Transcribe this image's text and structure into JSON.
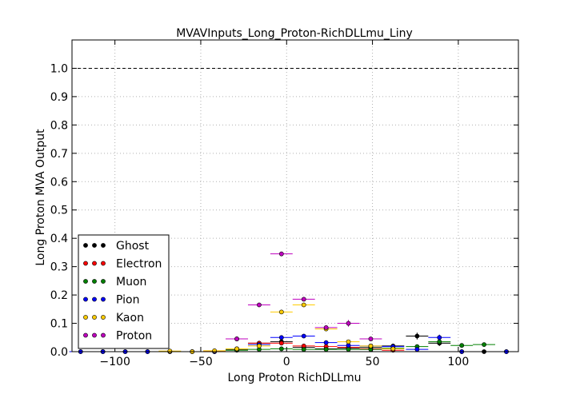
{
  "chart_data": {
    "type": "scatter",
    "title": "MVAVInputs_Long_Proton-RichDLLmu_Liny",
    "xlabel": "Long Proton RichDLLmu",
    "ylabel": "Long Proton MVA Output",
    "xlim": [
      -125,
      135
    ],
    "ylim": [
      0,
      1.1
    ],
    "x_ticks": [
      -100,
      -50,
      0,
      50,
      100
    ],
    "x_tick_labels": [
      "−100",
      "−50",
      "0",
      "50",
      "100"
    ],
    "y_ticks": [
      0.0,
      0.1,
      0.2,
      0.3,
      0.4,
      0.5,
      0.6,
      0.7,
      0.8,
      0.9,
      1.0
    ],
    "y_tick_labels": [
      "0.0",
      "0.1",
      "0.2",
      "0.3",
      "0.4",
      "0.5",
      "0.6",
      "0.7",
      "0.8",
      "0.9",
      "1.0"
    ],
    "grid": true,
    "reference_line": 1.0,
    "legend_position": "lower-left",
    "series": [
      {
        "name": "Ghost",
        "color": "#000000",
        "points": [
          [
            -120,
            0
          ],
          [
            -107,
            0
          ],
          [
            -94,
            0
          ],
          [
            -81,
            0
          ],
          [
            -68,
            0
          ],
          [
            -55,
            0
          ],
          [
            -42,
            0
          ],
          [
            -29,
            0.008
          ],
          [
            -16,
            0.03
          ],
          [
            -3,
            0.035
          ],
          [
            10,
            0.015
          ],
          [
            23,
            0.01
          ],
          [
            36,
            0.012
          ],
          [
            49,
            0.015
          ],
          [
            62,
            0.02
          ],
          [
            76,
            0.055
          ],
          [
            89,
            0.03
          ],
          [
            102,
            0
          ],
          [
            115,
            0
          ],
          [
            128,
            0
          ]
        ],
        "xerr": 6.5,
        "yerr": [
          0,
          0,
          0,
          0,
          0,
          0,
          0,
          0.003,
          0.005,
          0.006,
          0.004,
          0.003,
          0.004,
          0.005,
          0.006,
          0.012,
          0.01,
          0,
          0,
          0
        ]
      },
      {
        "name": "Electron",
        "color": "#ff0000",
        "points": [
          [
            -42,
            0.002
          ],
          [
            -29,
            0.045
          ],
          [
            -16,
            0.03
          ],
          [
            -3,
            0.03
          ],
          [
            10,
            0.02
          ],
          [
            23,
            0.018
          ],
          [
            36,
            0.015
          ],
          [
            49,
            0.01
          ],
          [
            62,
            0.005
          ]
        ],
        "xerr": 6.5,
        "yerr": [
          0.001,
          0.005,
          0.004,
          0.004,
          0.003,
          0.003,
          0.003,
          0.002,
          0.002
        ]
      },
      {
        "name": "Muon",
        "color": "#008000",
        "points": [
          [
            -29,
            0.005
          ],
          [
            -16,
            0.008
          ],
          [
            -3,
            0.01
          ],
          [
            10,
            0.008
          ],
          [
            23,
            0.008
          ],
          [
            36,
            0.008
          ],
          [
            49,
            0.008
          ],
          [
            62,
            0.012
          ],
          [
            76,
            0.018
          ],
          [
            89,
            0.035
          ],
          [
            102,
            0.022
          ],
          [
            115,
            0.025
          ]
        ],
        "xerr": 6.5,
        "yerr": [
          0.002,
          0.002,
          0.003,
          0.002,
          0.002,
          0.002,
          0.002,
          0.003,
          0.004,
          0.006,
          0.004,
          0.005
        ]
      },
      {
        "name": "Pion",
        "color": "#0000ff",
        "points": [
          [
            -120,
            0
          ],
          [
            -107,
            0
          ],
          [
            -94,
            0
          ],
          [
            -81,
            0
          ],
          [
            -68,
            0
          ],
          [
            -55,
            0
          ],
          [
            -42,
            0
          ],
          [
            -29,
            0.01
          ],
          [
            -16,
            0.025
          ],
          [
            -3,
            0.05
          ],
          [
            10,
            0.055
          ],
          [
            23,
            0.032
          ],
          [
            36,
            0.022
          ],
          [
            49,
            0.02
          ],
          [
            62,
            0.018
          ],
          [
            76,
            0.008
          ],
          [
            89,
            0.05
          ],
          [
            102,
            0
          ],
          [
            128,
            0
          ]
        ],
        "xerr": 6.5,
        "yerr": [
          0,
          0,
          0,
          0,
          0,
          0,
          0,
          0.002,
          0.003,
          0.004,
          0.004,
          0.003,
          0.003,
          0.003,
          0.003,
          0.002,
          0.01,
          0,
          0
        ]
      },
      {
        "name": "Kaon",
        "color": "#ffcc00",
        "points": [
          [
            -68,
            0.002
          ],
          [
            -55,
            0
          ],
          [
            -42,
            0.003
          ],
          [
            -29,
            0.01
          ],
          [
            -16,
            0.02
          ],
          [
            -3,
            0.14
          ],
          [
            10,
            0.165
          ],
          [
            23,
            0.08
          ],
          [
            36,
            0.035
          ],
          [
            49,
            0.02
          ],
          [
            62,
            0.01
          ]
        ],
        "xerr": 6.5,
        "yerr": [
          0.001,
          0,
          0.001,
          0.002,
          0.003,
          0.006,
          0.007,
          0.005,
          0.004,
          0.003,
          0.002
        ]
      },
      {
        "name": "Proton",
        "color": "#bf00bf",
        "points": [
          [
            -29,
            0.045
          ],
          [
            -16,
            0.165
          ],
          [
            -3,
            0.345
          ],
          [
            10,
            0.185
          ],
          [
            23,
            0.085
          ],
          [
            36,
            0.1
          ],
          [
            49,
            0.045
          ]
        ],
        "xerr": 6.5,
        "yerr": [
          0.004,
          0.006,
          0.008,
          0.007,
          0.006,
          0.012,
          0.006
        ]
      }
    ]
  }
}
